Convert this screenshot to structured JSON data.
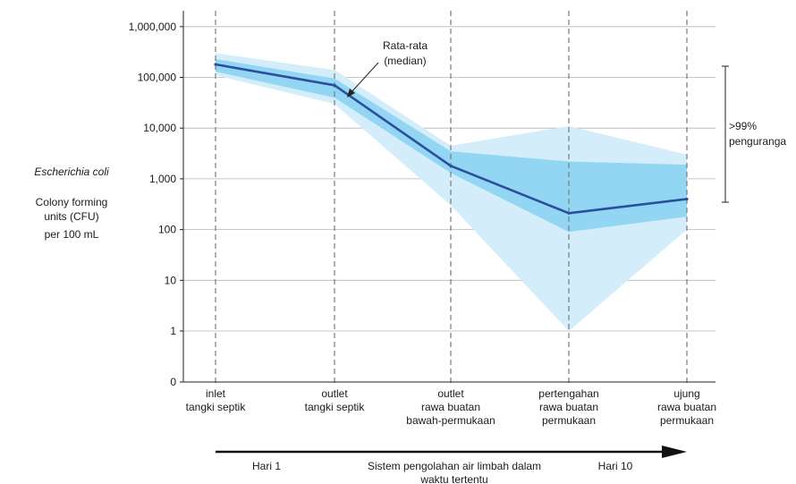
{
  "chart_data": {
    "type": "area",
    "scale_y": "log",
    "grid": true,
    "y_ticks": [
      {
        "value": 0,
        "label": "0"
      },
      {
        "value": 1,
        "label": "1"
      },
      {
        "value": 10,
        "label": "10"
      },
      {
        "value": 100,
        "label": "100"
      },
      {
        "value": 1000,
        "label": "1,000"
      },
      {
        "value": 10000,
        "label": "10,000"
      },
      {
        "value": 100000,
        "label": "100,000"
      },
      {
        "value": 1000000,
        "label": "1,000,000"
      }
    ],
    "categories": [
      [
        "inlet",
        "tangki septik"
      ],
      [
        "outlet",
        "tangki septik"
      ],
      [
        "outlet",
        "rawa buatan",
        "bawah-permukaan"
      ],
      [
        "pertengahan",
        "rawa buatan",
        "permukaan"
      ],
      [
        "ujung",
        "rawa buatan",
        "permukaan"
      ]
    ],
    "ylabel": {
      "species": "Escherichia coli",
      "lines": [
        "Colony forming",
        "units (CFU)",
        "per 100 mL"
      ]
    },
    "median": [
      180000,
      70000,
      1800,
      210,
      400
    ],
    "band_inner": {
      "low": [
        130000,
        40000,
        1300,
        90,
        180
      ],
      "high": [
        230000,
        95000,
        3500,
        2200,
        1900
      ]
    },
    "band_outer": {
      "low": [
        110000,
        30000,
        300,
        1,
        100
      ],
      "high": [
        300000,
        140000,
        4500,
        11000,
        3000
      ]
    },
    "annotations": {
      "median_label": [
        "Rata-rata",
        "(median)"
      ],
      "reduction_label": [
        ">99%",
        "penguranga"
      ]
    },
    "time_axis": {
      "start": "Hari 1",
      "middle": [
        "Sistem pengolahan air limbah dalam",
        "waktu tertentu"
      ],
      "end": "Hari 10"
    },
    "colors": {
      "median": "#2b4f9e",
      "band_inner": "#92d6f3",
      "band_outer": "#d3edfa",
      "grid": "#b5b5b5",
      "axis": "#222222"
    }
  }
}
